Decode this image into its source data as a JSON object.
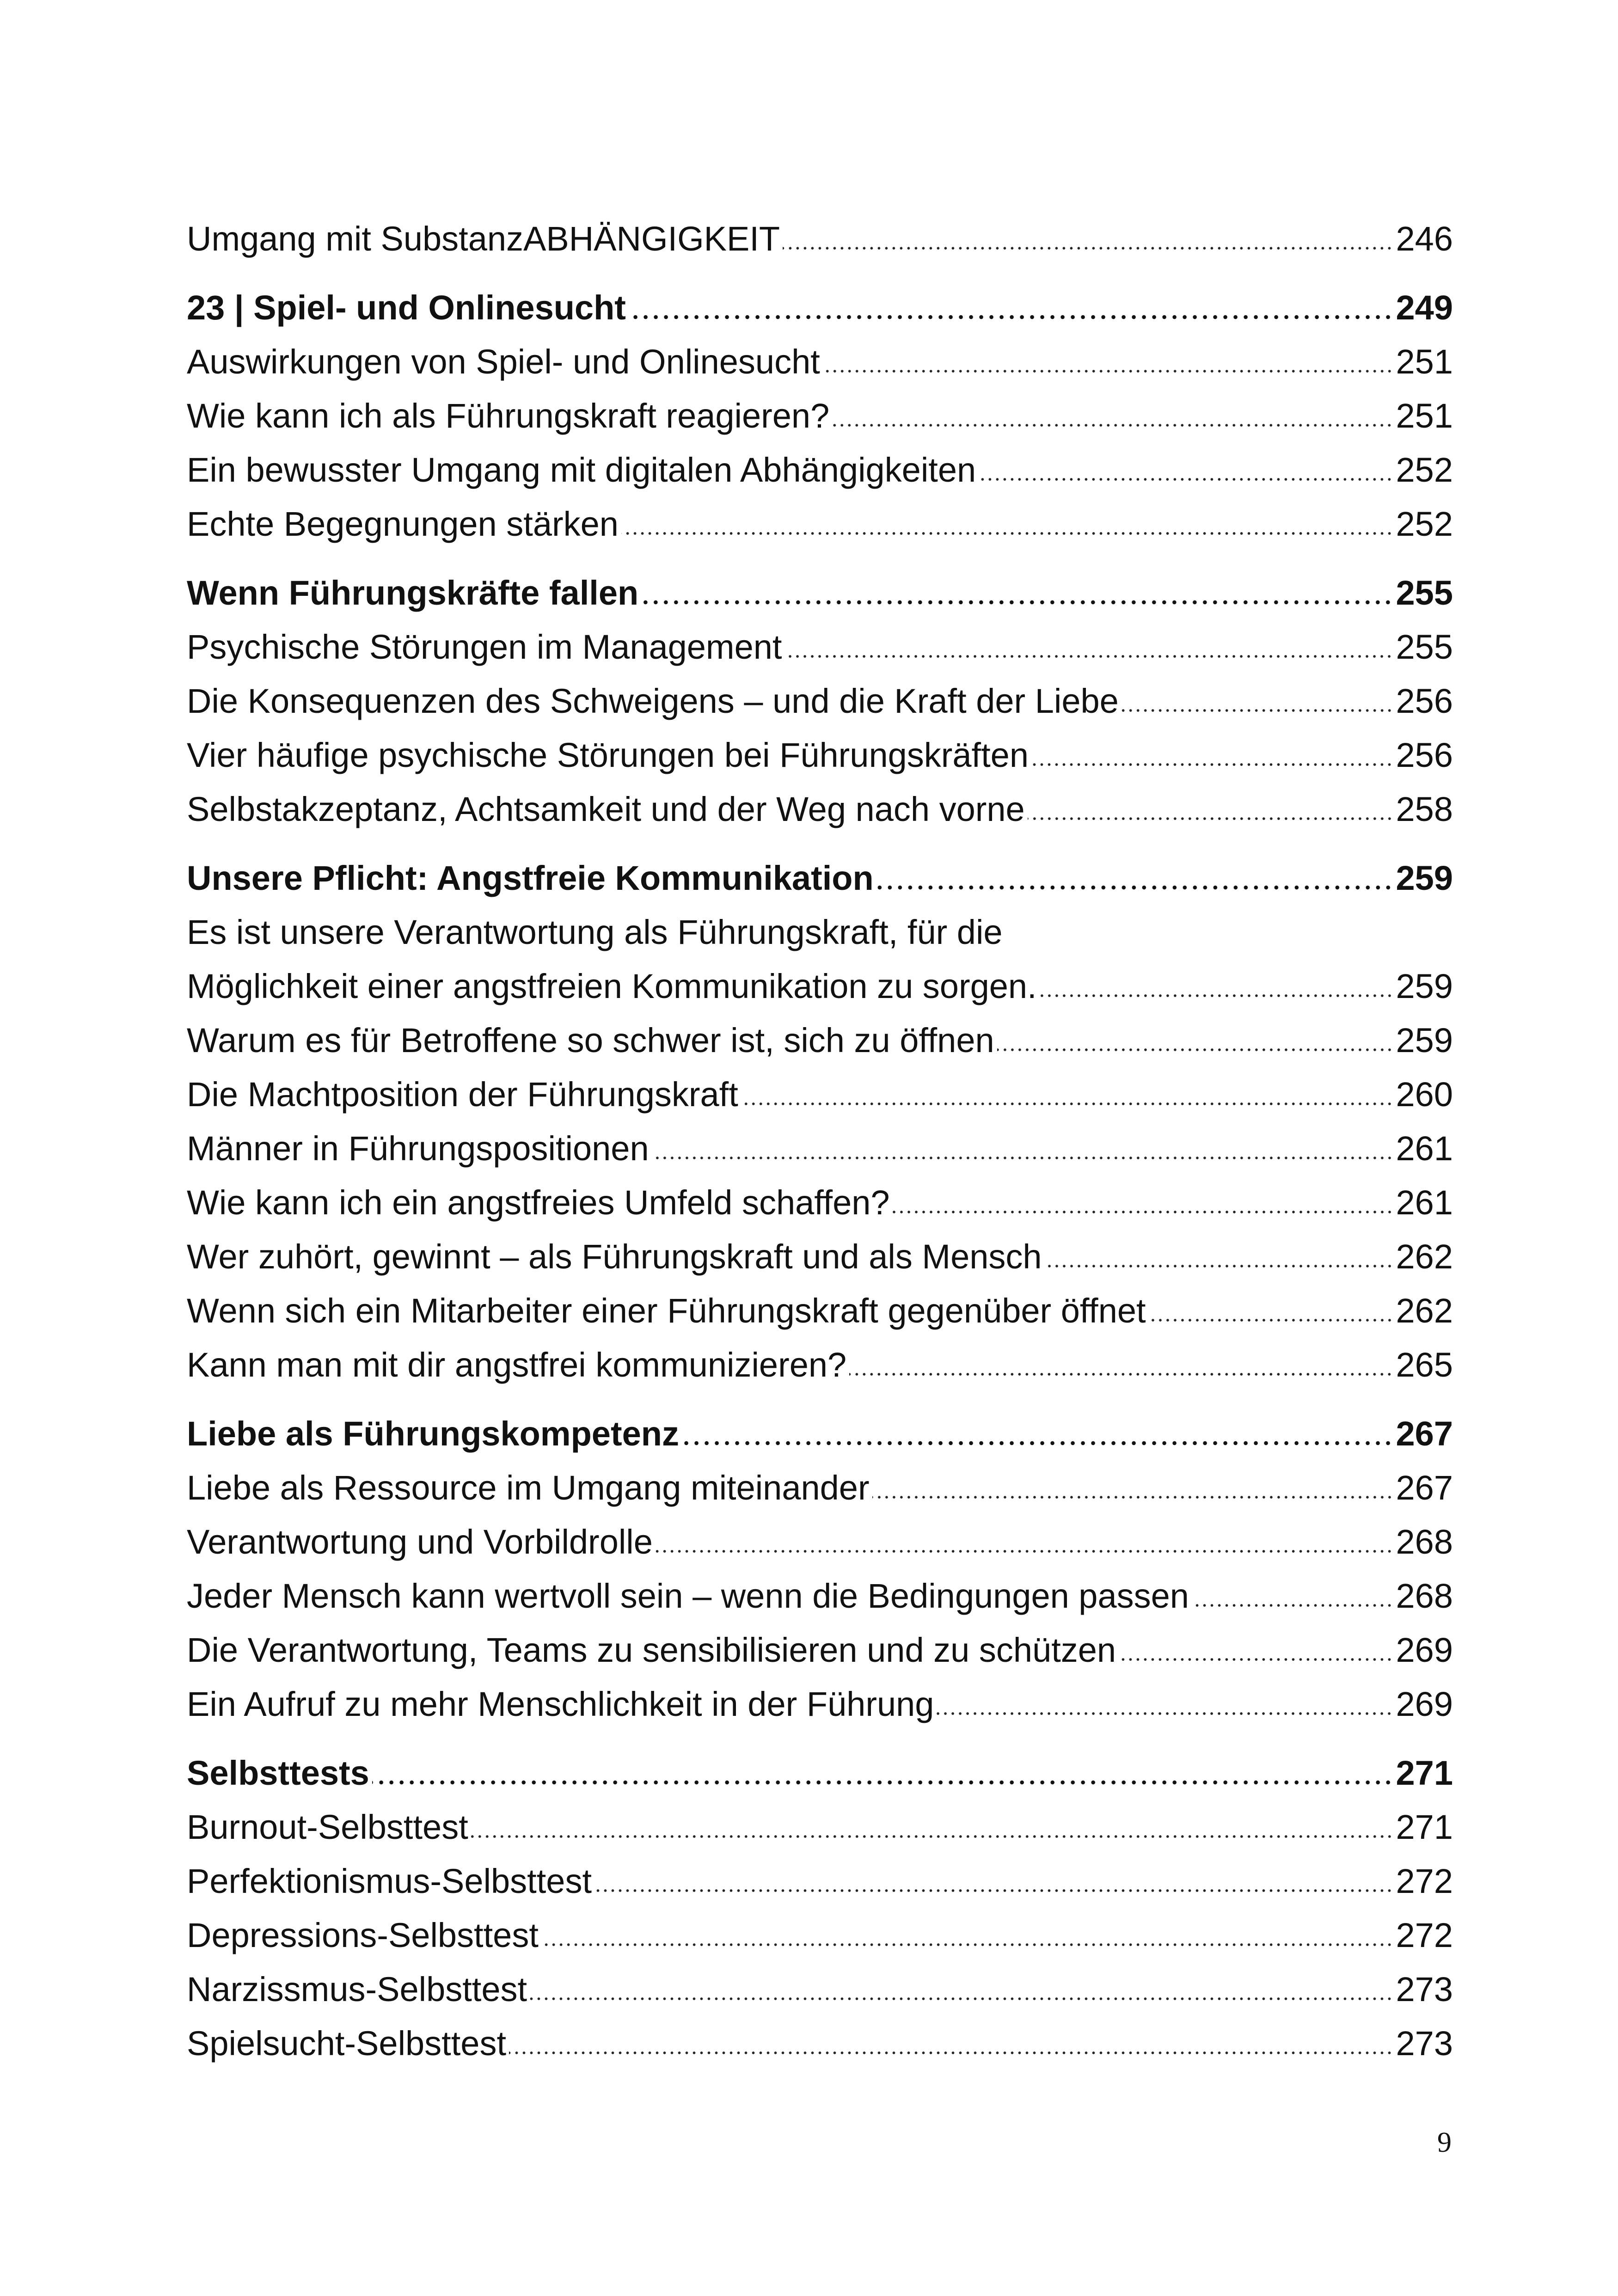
{
  "sections": [
    {
      "entries": [
        {
          "title": "Umgang mit SubstanzABHÄNGIGKEIT",
          "page": "246"
        }
      ]
    },
    {
      "heading": {
        "title": "23 | Spiel- und Onlinesucht",
        "page": "249"
      },
      "entries": [
        {
          "title": "Auswirkungen von Spiel- und Onlinesucht",
          "page": "251"
        },
        {
          "title": "Wie kann ich als Führungskraft reagieren?",
          "page": "251"
        },
        {
          "title": "Ein bewusster Umgang mit digitalen Abhängigkeiten",
          "page": "252"
        },
        {
          "title": "Echte Begegnungen stärken",
          "page": "252"
        }
      ]
    },
    {
      "heading": {
        "title": "Wenn Führungskräfte fallen",
        "page": "255"
      },
      "entries": [
        {
          "title": "Psychische Störungen im Management",
          "page": "255"
        },
        {
          "title": "Die Konsequenzen des Schweigens – und die Kraft der Liebe",
          "page": "256"
        },
        {
          "title": "Vier häufige psychische Störungen bei Führungskräften",
          "page": "256"
        },
        {
          "title": "Selbstakzeptanz, Achtsamkeit und der Weg nach vorne",
          "page": "258"
        }
      ]
    },
    {
      "heading": {
        "title": "Unsere Pflicht: Angstfreie Kommunikation",
        "page": "259"
      },
      "entries": [
        {
          "lines": [
            "Es ist unsere Verantwortung als Führungskraft, für die",
            "Möglichkeit einer angstfreien Kommunikation zu sorgen."
          ],
          "page": "259"
        },
        {
          "title": "Warum es für Betroffene so schwer ist, sich zu öffnen",
          "page": "259"
        },
        {
          "title": "Die Machtposition der Führungskraft",
          "page": "260"
        },
        {
          "title": "Männer in Führungspositionen",
          "page": "261"
        },
        {
          "title": "Wie kann ich ein angstfreies Umfeld schaffen?",
          "page": "261"
        },
        {
          "title": "Wer zuhört, gewinnt – als Führungskraft und als Mensch",
          "page": "262"
        },
        {
          "title": "Wenn sich ein Mitarbeiter  einer Führungskraft gegenüber öffnet",
          "page": "262"
        },
        {
          "title": "Kann man mit dir angstfrei kommunizieren?",
          "page": "265"
        }
      ]
    },
    {
      "heading": {
        "title": "Liebe als Führungskompetenz",
        "page": "267"
      },
      "entries": [
        {
          "title": "Liebe als Ressource im Umgang miteinander",
          "page": "267"
        },
        {
          "title": "Verantwortung und Vorbildrolle",
          "page": "268"
        },
        {
          "title": "Jeder Mensch kann wertvoll sein – wenn die Bedingungen passen",
          "page": "268"
        },
        {
          "title": "Die Verantwortung, Teams zu sensibilisieren und zu schützen",
          "page": "269"
        },
        {
          "title": "Ein Aufruf zu mehr Menschlichkeit in der Führung",
          "page": "269"
        }
      ]
    },
    {
      "heading": {
        "title": "Selbsttests",
        "page": "271"
      },
      "entries": [
        {
          "title": "Burnout-Selbsttest",
          "page": "271"
        },
        {
          "title": "Perfektionismus-Selbsttest",
          "page": "272"
        },
        {
          "title": "Depressions-Selbsttest",
          "page": "272"
        },
        {
          "title": "Narzissmus-Selbsttest",
          "page": "273"
        },
        {
          "title": "Spielsucht-Selbsttest",
          "page": "273"
        }
      ]
    }
  ],
  "page_number": "9"
}
